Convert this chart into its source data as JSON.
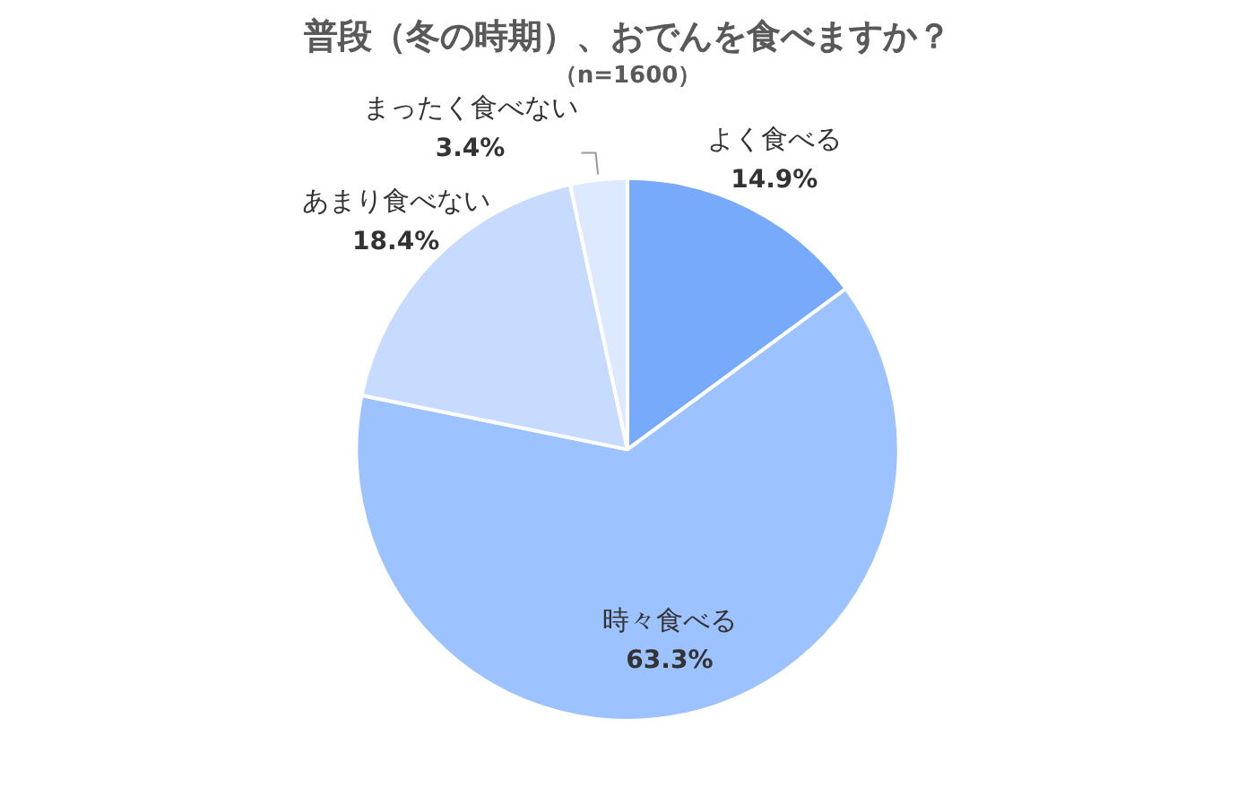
{
  "chart_data": {
    "type": "pie",
    "title": "普段（冬の時期）、おでんを食べますか？",
    "subtitle": "（n=1600）",
    "categories": [
      "よく食べる",
      "時々食べる",
      "あまり食べない",
      "まったく食べない"
    ],
    "values": [
      14.9,
      63.3,
      18.4,
      3.4
    ],
    "colors": [
      "#78aafc",
      "#9cc2ff",
      "#c6dbff",
      "#dde9ff"
    ],
    "value_labels": [
      "14.9%",
      "63.3%",
      "18.4%",
      "3.4%"
    ],
    "legend": false
  }
}
